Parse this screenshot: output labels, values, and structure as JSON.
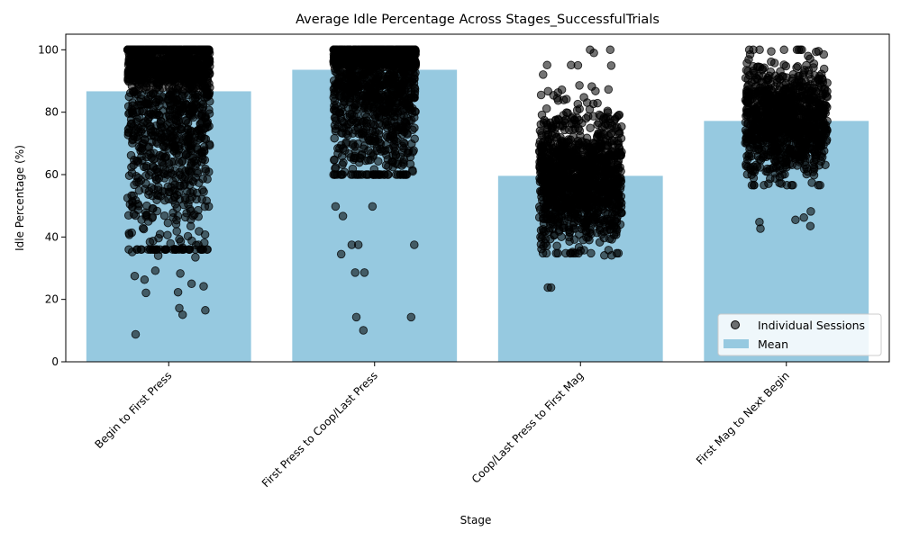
{
  "chart_data": {
    "type": "bar",
    "title": "Average Idle Percentage Across Stages_SuccessfulTrials",
    "xlabel": "Stage",
    "ylabel": "Idle Percentage (%)",
    "ylim": [
      0,
      105
    ],
    "yticks": [
      0,
      20,
      40,
      60,
      80,
      100
    ],
    "categories": [
      "Begin to First Press",
      "First Press to Coop/Last Press",
      "Coop/Last Press to First Mag",
      "First Mag to Next Begin"
    ],
    "series": [
      {
        "name": "Mean",
        "kind": "bar",
        "color": "#96c9e0",
        "values": [
          86.7,
          93.6,
          59.6,
          77.2
        ]
      },
      {
        "name": "Individual Sessions",
        "kind": "scatter",
        "color": "#000000",
        "opacity": 0.55,
        "points": [
          {
            "category": 0,
            "low": 8.8,
            "q1": 60,
            "median": 90,
            "q3": 100,
            "high": 100,
            "count": 1400,
            "outliers": [
              8.8,
              15.1,
              16.5,
              17.2,
              22.1,
              22.3,
              24.2,
              25.0,
              26.3,
              27.5,
              28.3,
              29.2,
              33.5,
              34.0,
              35.2,
              36.0,
              37.5
            ]
          },
          {
            "category": 1,
            "low": 10.1,
            "q1": 75,
            "median": 95,
            "q3": 100,
            "high": 100,
            "count": 1400,
            "outliers": [
              10.1,
              14.3,
              14.3,
              28.6,
              28.6,
              34.5,
              37.5,
              37.5,
              37.5,
              46.7,
              49.8,
              49.8
            ]
          },
          {
            "category": 2,
            "low": 23.8,
            "q1": 48,
            "median": 58,
            "q3": 70,
            "high": 100,
            "count": 1200,
            "outliers": [
              23.8,
              23.8,
              34.1,
              34.1,
              35.2,
              95.1,
              95.1,
              99.0,
              100.0,
              100.0
            ]
          },
          {
            "category": 3,
            "low": 42.7,
            "q1": 68,
            "median": 78,
            "q3": 87,
            "high": 100,
            "count": 1000,
            "outliers": [
              42.7,
              43.5,
              44.8,
              45.5,
              46.2,
              48.2,
              98.5,
              99.5,
              100.0,
              100.0
            ]
          }
        ]
      }
    ],
    "legend": {
      "placement": "lower-right",
      "entries": [
        "Individual Sessions",
        "Mean"
      ]
    },
    "grid": false
  }
}
